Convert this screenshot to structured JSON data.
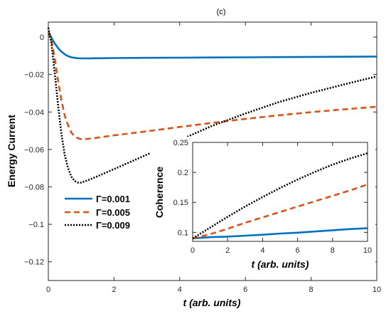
{
  "chart_data": [
    {
      "type": "line",
      "title": "(c)",
      "xlabel": "t (arb. units)",
      "ylabel": "Energy Current",
      "xlim": [
        0,
        10
      ],
      "ylim": [
        -0.13,
        0.008
      ],
      "xticks": [
        0,
        2,
        4,
        6,
        8,
        10
      ],
      "yticks": [
        0,
        -0.02,
        -0.04,
        -0.06,
        -0.08,
        -0.1,
        -0.12
      ],
      "xtick_labels": [
        "0",
        "2",
        "4",
        "6",
        "8",
        "10"
      ],
      "ytick_labels": [
        "0",
        "−0.02",
        "−0.04",
        "−0.06",
        "−0.08",
        "−0.1",
        "−0.12"
      ],
      "legend_position": "lower-left",
      "series": [
        {
          "name": "Γ=0.001",
          "color": "#0072BD",
          "style": "solid",
          "x": [
            0,
            0.1,
            0.2,
            0.3,
            0.4,
            0.5,
            0.6,
            0.7,
            0.8,
            0.9,
            1.0,
            1.2,
            1.5,
            2,
            3,
            4,
            5,
            6,
            7,
            8,
            9,
            10
          ],
          "y": [
            0.003,
            -0.0005,
            -0.0035,
            -0.006,
            -0.0078,
            -0.0092,
            -0.0102,
            -0.0108,
            -0.0111,
            -0.0113,
            -0.0114,
            -0.0114,
            -0.0113,
            -0.0112,
            -0.0111,
            -0.011,
            -0.0109,
            -0.0108,
            -0.0107,
            -0.0106,
            -0.0105,
            -0.0104
          ]
        },
        {
          "name": "Γ=0.005",
          "color": "#D95319",
          "style": "dashed",
          "x": [
            0,
            0.1,
            0.2,
            0.3,
            0.4,
            0.5,
            0.6,
            0.7,
            0.8,
            0.9,
            1.0,
            1.1,
            1.3,
            1.5,
            2,
            3,
            4,
            5,
            6,
            7,
            8,
            9,
            10
          ],
          "y": [
            0.003,
            -0.002,
            -0.012,
            -0.024,
            -0.034,
            -0.042,
            -0.047,
            -0.051,
            -0.053,
            -0.054,
            -0.0545,
            -0.0545,
            -0.0542,
            -0.0537,
            -0.0525,
            -0.0503,
            -0.048,
            -0.0458,
            -0.0437,
            -0.0418,
            -0.0401,
            -0.0386,
            -0.0372
          ]
        },
        {
          "name": "Γ=0.009",
          "color": "#000000",
          "style": "dotted",
          "x": [
            0,
            0.1,
            0.2,
            0.3,
            0.4,
            0.5,
            0.6,
            0.7,
            0.8,
            0.9,
            1.0,
            1.2,
            1.5,
            2,
            3,
            4,
            5,
            6,
            7,
            8,
            9,
            10
          ],
          "y": [
            0.005,
            -0.004,
            -0.02,
            -0.037,
            -0.052,
            -0.063,
            -0.07,
            -0.0745,
            -0.0768,
            -0.0777,
            -0.0777,
            -0.0765,
            -0.0743,
            -0.0705,
            -0.0628,
            -0.055,
            -0.0473,
            -0.0408,
            -0.0348,
            -0.0298,
            -0.0253,
            -0.021
          ]
        }
      ]
    },
    {
      "type": "line",
      "title": "",
      "xlabel": "t (arb. units)",
      "ylabel": "Coherence",
      "xlim": [
        0,
        10
      ],
      "ylim": [
        0.085,
        0.25
      ],
      "xticks": [
        0,
        2,
        4,
        6,
        8,
        10
      ],
      "yticks": [
        0.1,
        0.15,
        0.2,
        0.25
      ],
      "xtick_labels": [
        "0",
        "2",
        "4",
        "6",
        "8",
        "10"
      ],
      "ytick_labels": [
        "0.1",
        "0.15",
        "0.2",
        "0.25"
      ],
      "series": [
        {
          "color": "#0072BD",
          "style": "solid",
          "x": [
            0,
            1,
            2,
            3,
            4,
            5,
            6,
            7,
            8,
            9,
            10
          ],
          "y": [
            0.09,
            0.092,
            0.093,
            0.0945,
            0.096,
            0.098,
            0.0995,
            0.1015,
            0.1035,
            0.1055,
            0.107
          ]
        },
        {
          "color": "#D95319",
          "style": "dashed",
          "x": [
            0,
            1,
            2,
            3,
            4,
            5,
            6,
            7,
            8,
            9,
            10
          ],
          "y": [
            0.09,
            0.097,
            0.106,
            0.116,
            0.125,
            0.134,
            0.143,
            0.152,
            0.161,
            0.17,
            0.18
          ]
        },
        {
          "color": "#000000",
          "style": "dotted",
          "x": [
            0,
            1,
            2,
            3,
            4,
            5,
            6,
            7,
            8,
            9,
            10
          ],
          "y": [
            0.09,
            0.108,
            0.126,
            0.143,
            0.159,
            0.174,
            0.188,
            0.201,
            0.213,
            0.223,
            0.232
          ]
        }
      ]
    }
  ]
}
